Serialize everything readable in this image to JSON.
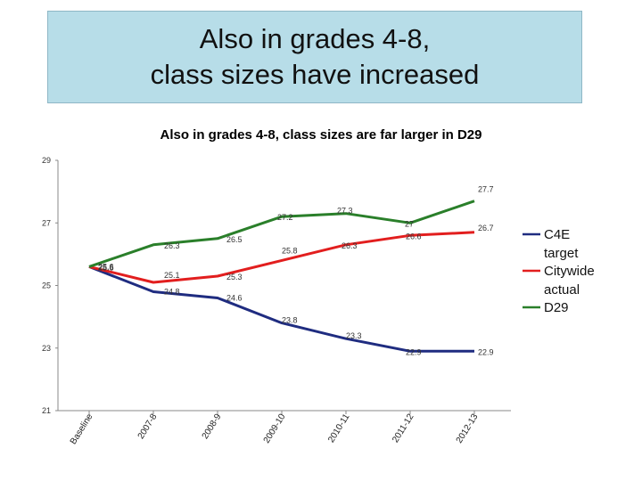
{
  "slide": {
    "title_line1": "Also in grades 4-8,",
    "title_line2": "class sizes have increased"
  },
  "chart_data": {
    "type": "line",
    "title": "Also in grades 4-8, class sizes are far larger in D29",
    "categories": [
      "Baseline",
      "2007-8",
      "2008-9",
      "2009-10",
      "2010-11",
      "2011-12",
      "2012-13"
    ],
    "ylim": [
      21,
      29
    ],
    "yticks": [
      21,
      23,
      25,
      27,
      29
    ],
    "grid": false,
    "legend_position": "right",
    "series": [
      {
        "name": "C4E target",
        "color": "#1f2c80",
        "values": [
          25.6,
          24.8,
          24.6,
          23.8,
          23.3,
          22.9,
          22.9
        ],
        "labels": [
          "25.6",
          "24.8",
          "24.6",
          "23.8",
          "23.3",
          "22.9",
          "22.9"
        ]
      },
      {
        "name": "Citywide actual",
        "color": "#e21e1e",
        "values": [
          25.6,
          25.1,
          25.3,
          25.8,
          26.3,
          26.6,
          26.7
        ],
        "labels": [
          "25.6",
          "25.1",
          "25.3",
          "25.8",
          "26.3",
          "26.6",
          "26.7"
        ]
      },
      {
        "name": "D29",
        "color": "#2a7f2a",
        "values": [
          25.6,
          26.3,
          26.5,
          27.2,
          27.3,
          27,
          27.7
        ],
        "labels": [
          "25.6",
          "26.3",
          "26.5",
          "27.2",
          "27.3",
          "27",
          "27.7"
        ]
      }
    ]
  }
}
